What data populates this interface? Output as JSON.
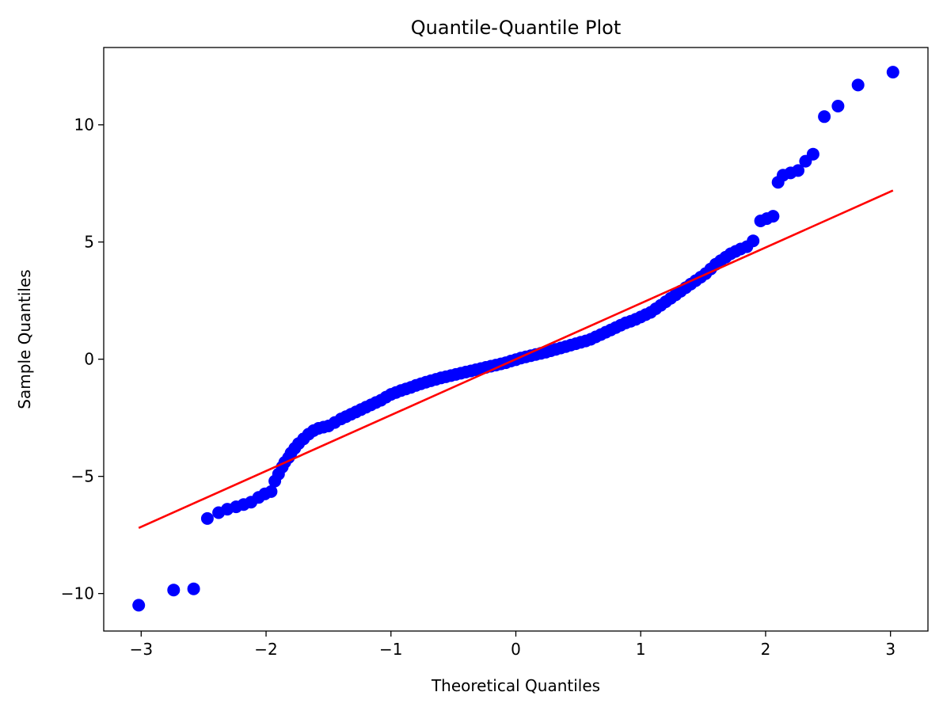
{
  "chart_data": {
    "type": "scatter",
    "title": "Quantile-Quantile Plot",
    "xlabel": "Theoretical Quantiles",
    "ylabel": "Sample Quantiles",
    "xlim": [
      -3.3,
      3.3
    ],
    "ylim": [
      -11.6,
      13.3
    ],
    "xticks": [
      -3,
      -2,
      -1,
      0,
      1,
      2,
      3
    ],
    "xtick_labels": [
      "−3",
      "−2",
      "−1",
      "0",
      "1",
      "2",
      "3"
    ],
    "yticks": [
      -10,
      -5,
      0,
      5,
      10
    ],
    "ytick_labels": [
      "−10",
      "−5",
      "0",
      "5",
      "10"
    ],
    "grid": false,
    "colors": {
      "points": "#0000ff",
      "reference_line": "#ff0000",
      "axes": "#000000"
    },
    "reference_line": {
      "x": [
        -3.02,
        3.02
      ],
      "y": [
        -7.2,
        7.2
      ]
    },
    "series": [
      {
        "x": [
          -3.02,
          -2.74,
          -2.58,
          -2.47,
          -2.38,
          -2.31,
          -2.24,
          -2.18,
          -2.12,
          -2.06,
          -2.01,
          -1.96,
          -1.93,
          -1.9,
          -1.87,
          -1.85,
          -1.82,
          -1.8,
          -1.77,
          -1.74,
          -1.7,
          -1.66,
          -1.62,
          -1.58,
          -1.54,
          -1.5,
          -1.45,
          -1.4,
          -1.36,
          -1.32,
          -1.28,
          -1.24,
          -1.2,
          -1.16,
          -1.12,
          -1.08,
          -1.04,
          -1.0,
          -0.96,
          -0.92,
          -0.88,
          -0.84,
          -0.8,
          -0.76,
          -0.72,
          -0.68,
          -0.64,
          -0.6,
          -0.56,
          -0.52,
          -0.48,
          -0.44,
          -0.4,
          -0.36,
          -0.32,
          -0.28,
          -0.24,
          -0.2,
          -0.16,
          -0.12,
          -0.08,
          -0.04,
          0.0,
          0.04,
          0.08,
          0.12,
          0.16,
          0.2,
          0.24,
          0.28,
          0.32,
          0.36,
          0.4,
          0.44,
          0.48,
          0.52,
          0.56,
          0.6,
          0.64,
          0.68,
          0.72,
          0.76,
          0.8,
          0.84,
          0.88,
          0.92,
          0.96,
          1.0,
          1.04,
          1.08,
          1.12,
          1.16,
          1.2,
          1.24,
          1.28,
          1.32,
          1.36,
          1.4,
          1.44,
          1.48,
          1.52,
          1.56,
          1.6,
          1.64,
          1.68,
          1.72,
          1.76,
          1.8,
          1.85,
          1.9,
          1.96,
          2.01,
          2.06,
          2.1,
          2.14,
          2.2,
          2.26,
          2.32,
          2.38,
          2.47,
          2.58,
          2.74,
          3.02
        ],
        "y": [
          -10.5,
          -9.85,
          -9.8,
          -6.8,
          -6.55,
          -6.4,
          -6.3,
          -6.2,
          -6.1,
          -5.9,
          -5.75,
          -5.65,
          -5.2,
          -4.9,
          -4.6,
          -4.4,
          -4.2,
          -4.0,
          -3.8,
          -3.6,
          -3.4,
          -3.2,
          -3.05,
          -2.95,
          -2.9,
          -2.85,
          -2.7,
          -2.55,
          -2.45,
          -2.35,
          -2.25,
          -2.15,
          -2.05,
          -1.95,
          -1.85,
          -1.75,
          -1.62,
          -1.5,
          -1.42,
          -1.34,
          -1.27,
          -1.2,
          -1.12,
          -1.05,
          -0.98,
          -0.92,
          -0.86,
          -0.8,
          -0.75,
          -0.7,
          -0.65,
          -0.6,
          -0.55,
          -0.5,
          -0.45,
          -0.4,
          -0.35,
          -0.3,
          -0.25,
          -0.2,
          -0.15,
          -0.08,
          -0.02,
          0.05,
          0.1,
          0.15,
          0.2,
          0.25,
          0.3,
          0.36,
          0.42,
          0.48,
          0.54,
          0.6,
          0.66,
          0.72,
          0.78,
          0.85,
          0.95,
          1.05,
          1.15,
          1.25,
          1.35,
          1.45,
          1.55,
          1.62,
          1.7,
          1.8,
          1.9,
          2.0,
          2.15,
          2.3,
          2.45,
          2.6,
          2.75,
          2.9,
          3.05,
          3.2,
          3.35,
          3.5,
          3.65,
          3.85,
          4.05,
          4.2,
          4.35,
          4.5,
          4.6,
          4.7,
          4.8,
          5.05,
          5.9,
          6.0,
          6.1,
          7.55,
          7.85,
          7.95,
          8.05,
          8.45,
          8.75,
          10.35,
          10.8,
          11.7,
          12.25
        ]
      }
    ]
  }
}
